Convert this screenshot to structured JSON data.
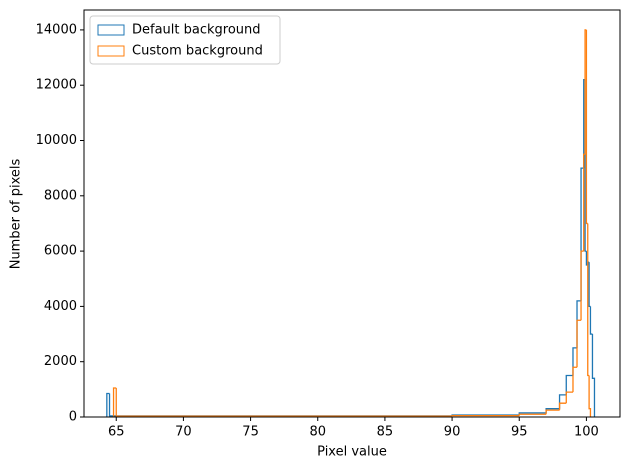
{
  "chart_data": {
    "type": "histogram-step",
    "xlabel": "Pixel value",
    "ylabel": "Number of pixels",
    "xlim": [
      62.6,
      102.5
    ],
    "ylim": [
      0,
      14720
    ],
    "xticks": [
      65,
      70,
      75,
      80,
      85,
      90,
      95,
      100
    ],
    "yticks": [
      0,
      2000,
      4000,
      6000,
      8000,
      10000,
      12000,
      14000
    ],
    "grid": false,
    "legend": "upper left",
    "series": [
      {
        "name": "Default background",
        "color": "#1f77b4",
        "bins": [
          64.3,
          64.5,
          90,
          95,
          97,
          98,
          98.5,
          99,
          99.3,
          99.6,
          99.8,
          99.9,
          100.0,
          100.1,
          100.2,
          100.3,
          100.45,
          100.6
        ],
        "values": [
          850,
          40,
          70,
          150,
          300,
          800,
          1500,
          2500,
          4200,
          9000,
          12200,
          6000,
          5500,
          5600,
          4000,
          3000,
          1400
        ]
      },
      {
        "name": "Custom background",
        "color": "#ff7f0e",
        "bins": [
          64.8,
          65.0,
          90,
          95,
          97,
          98,
          98.5,
          99,
          99.3,
          99.6,
          99.8,
          99.9,
          100.0,
          100.1,
          100.2,
          100.3
        ],
        "values": [
          1050,
          30,
          50,
          100,
          250,
          500,
          900,
          1800,
          3500,
          6000,
          9500,
          14000,
          7000,
          1500,
          300
        ]
      }
    ]
  }
}
